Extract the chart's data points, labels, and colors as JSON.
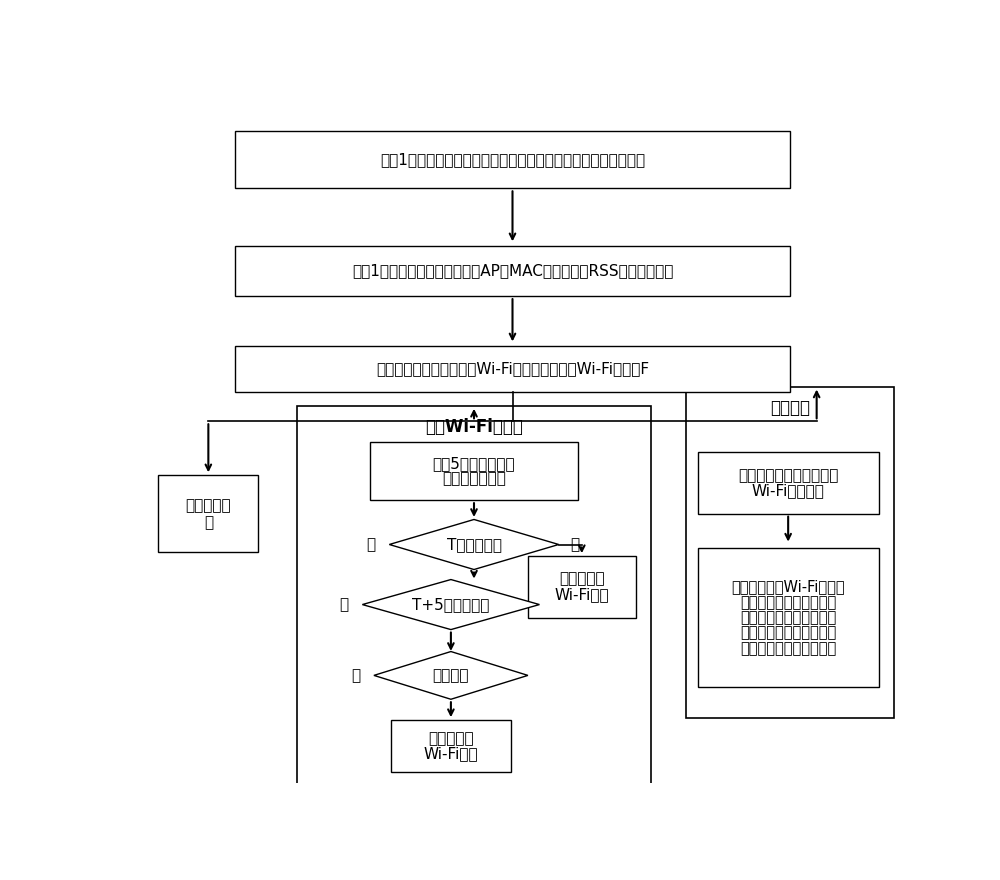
{
  "bg_color": "#ffffff",
  "box_color": "#ffffff",
  "box_edge": "#000000",
  "arrow_color": "#000000",
  "font_color": "#000000",
  "box1_text": "每隔1秒存储当前时刻利用惯性导航定位的定位结果和定位时间，",
  "box2_text": "每隔1秒采集待定位点扫描到的AP的MAC地址、对应RSS值及采集时间",
  "box3_text": "采集房间内的参考点采集Wi-Fi位置指纹，形成Wi-Fi指纹库F",
  "update_title": "更新Wi-Fi指纹库",
  "update_box1_line1": "每隔5秒执行一次房",
  "update_box1_line2": "间内外判定算法",
  "diamond1_text": "T时刻房间内",
  "diamond2_text": "T+5时刻房间内",
  "diamond3_text": "是否静止",
  "yes_label": "是",
  "no_label": "否",
  "add_outdoor1_line1": "添加房间外",
  "add_outdoor1_line2": "Wi-Fi指纹",
  "add_outdoor2_line1": "添加房间外",
  "add_outdoor2_line2": "Wi-Fi指纹",
  "delete_line1": "删除过期指",
  "delete_line2": "纹",
  "mixed_title": "混合定位",
  "mixed_box1_line1": "对当前时刻待定位点进行",
  "mixed_box1_line2": "Wi-Fi指纹定位",
  "mixed_box2_line1": "利用当前时刻Wi-Fi指纹定",
  "mixed_box2_line2": "位的定位结果和惯性导航",
  "mixed_box2_line3": "定位的定位结果获取最终",
  "mixed_box2_line4": "定位位置，并作为下一次",
  "mixed_box2_line5": "惯性导航定位的初始位置"
}
